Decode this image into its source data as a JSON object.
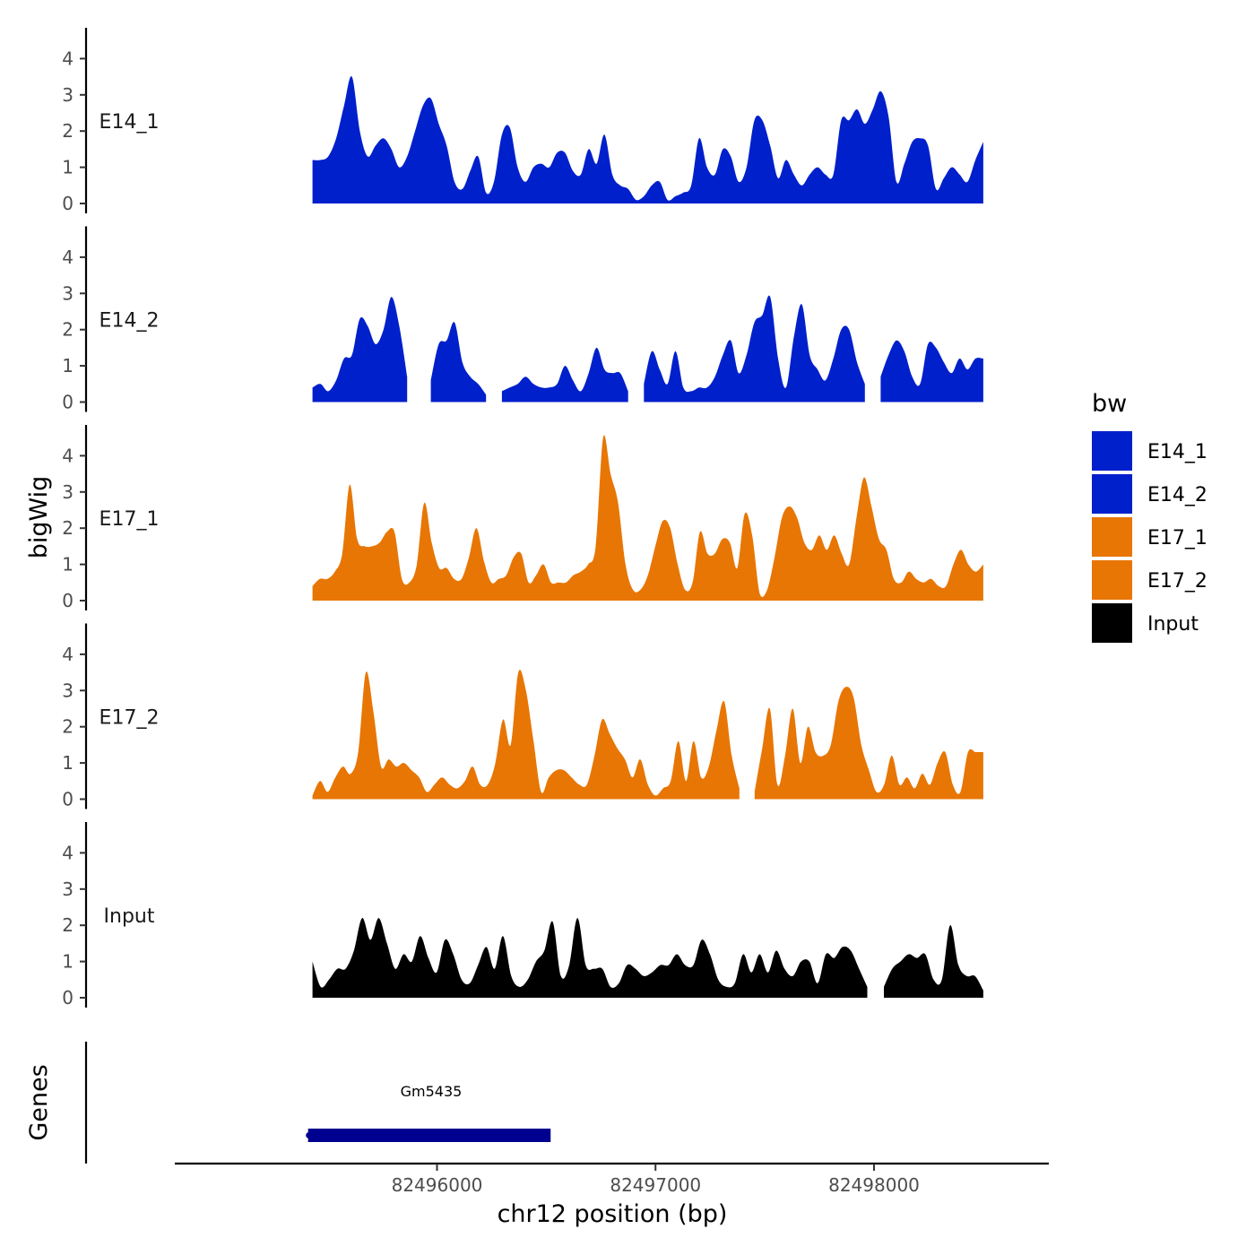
{
  "chart_data": {
    "type": "area",
    "x_axis": {
      "label": "chr12 position (bp)",
      "ticks": [
        82496000,
        82497000,
        82498000
      ],
      "range": [
        82494800,
        82498800
      ]
    },
    "y_axis": {
      "label": "bigWig",
      "ticks": [
        0,
        1,
        2,
        3,
        4
      ],
      "range": [
        0,
        4.8
      ]
    },
    "data_range": [
      82495430,
      82498500
    ],
    "legend": {
      "title": "bw",
      "position": "right",
      "entries": [
        {
          "name": "E14_1",
          "color": "#0020CC"
        },
        {
          "name": "E14_2",
          "color": "#0020CC"
        },
        {
          "name": "E17_1",
          "color": "#E87604"
        },
        {
          "name": "E17_2",
          "color": "#E87604"
        },
        {
          "name": "Input",
          "color": "#000000"
        }
      ]
    },
    "series": [
      {
        "name": "E14_1",
        "color": "#0020CC",
        "values": [
          1.2,
          1.2,
          1.3,
          1.8,
          2.7,
          3.5,
          2.0,
          1.3,
          1.6,
          1.8,
          1.5,
          1.0,
          1.3,
          2.0,
          2.7,
          2.9,
          2.2,
          1.6,
          0.6,
          0.4,
          0.9,
          1.3,
          0.3,
          0.6,
          1.9,
          2.1,
          1.0,
          0.6,
          1.0,
          1.1,
          1.0,
          1.4,
          1.4,
          0.9,
          0.8,
          1.5,
          1.1,
          1.9,
          0.8,
          0.5,
          0.4,
          0.1,
          0.2,
          0.5,
          0.6,
          0.1,
          0.2,
          0.3,
          0.5,
          1.8,
          1.0,
          0.8,
          1.5,
          1.3,
          0.6,
          1.0,
          2.3,
          2.3,
          1.6,
          0.7,
          1.2,
          0.8,
          0.5,
          0.8,
          1.0,
          0.8,
          0.8,
          2.3,
          2.3,
          2.6,
          2.2,
          2.6,
          3.1,
          2.4,
          0.6,
          1.1,
          1.7,
          1.8,
          1.6,
          0.4,
          0.7,
          1.0,
          0.8,
          0.6,
          1.2,
          1.7
        ]
      },
      {
        "name": "E14_2",
        "color": "#0020CC",
        "values": [
          0.4,
          0.5,
          0.3,
          0.6,
          1.2,
          1.3,
          2.3,
          2.1,
          1.6,
          2.0,
          2.9,
          2.1,
          0.7,
          null,
          null,
          0.6,
          1.6,
          1.7,
          2.2,
          1.1,
          0.7,
          0.5,
          0.2,
          null,
          0.3,
          0.4,
          0.5,
          0.7,
          0.5,
          0.4,
          0.4,
          0.5,
          1.0,
          0.6,
          0.3,
          0.8,
          1.5,
          0.9,
          0.8,
          0.8,
          0.3,
          null,
          0.5,
          1.4,
          0.9,
          0.5,
          1.4,
          0.4,
          0.3,
          0.4,
          0.4,
          0.7,
          1.3,
          1.7,
          0.8,
          1.3,
          2.2,
          2.4,
          2.9,
          1.2,
          0.4,
          1.8,
          2.7,
          1.3,
          0.9,
          0.6,
          1.2,
          2.0,
          2.0,
          1.1,
          0.5,
          null,
          0.7,
          1.3,
          1.7,
          1.4,
          0.7,
          0.5,
          1.6,
          1.5,
          1.1,
          0.8,
          1.2,
          0.9,
          1.2,
          1.2
        ]
      },
      {
        "name": "E17_1",
        "color": "#E87604",
        "values": [
          0.4,
          0.6,
          0.6,
          0.8,
          1.3,
          3.2,
          1.7,
          1.5,
          1.5,
          1.6,
          1.9,
          1.9,
          0.6,
          0.5,
          1.0,
          2.7,
          1.6,
          0.9,
          0.9,
          0.6,
          0.6,
          1.2,
          2.0,
          1.1,
          0.5,
          0.6,
          0.7,
          1.2,
          1.3,
          0.5,
          0.7,
          1.0,
          0.5,
          0.5,
          0.5,
          0.7,
          0.8,
          1.0,
          1.5,
          4.5,
          3.5,
          2.7,
          1.0,
          0.3,
          0.3,
          0.7,
          1.5,
          2.2,
          2.0,
          1.0,
          0.3,
          0.5,
          1.9,
          1.3,
          1.3,
          1.7,
          1.6,
          0.9,
          2.4,
          1.8,
          0.2,
          0.3,
          1.2,
          2.3,
          2.6,
          2.3,
          1.6,
          1.4,
          1.8,
          1.4,
          1.8,
          1.3,
          1.0,
          2.3,
          3.4,
          2.6,
          1.7,
          1.4,
          0.6,
          0.5,
          0.8,
          0.6,
          0.5,
          0.6,
          0.4,
          0.4,
          1.0,
          1.4,
          1.0,
          0.8,
          1.0
        ]
      },
      {
        "name": "E17_2",
        "color": "#E87604",
        "values": [
          0.1,
          0.5,
          0.2,
          0.6,
          0.9,
          0.7,
          1.3,
          3.5,
          2.4,
          0.9,
          1.1,
          0.9,
          1.0,
          0.8,
          0.6,
          0.2,
          0.4,
          0.6,
          0.4,
          0.3,
          0.5,
          0.9,
          0.4,
          0.4,
          1.0,
          2.2,
          1.5,
          3.5,
          3.0,
          1.6,
          0.2,
          0.6,
          0.8,
          0.8,
          0.6,
          0.4,
          0.4,
          1.2,
          2.2,
          1.8,
          1.4,
          1.1,
          0.6,
          1.1,
          0.4,
          0.1,
          0.3,
          0.5,
          1.6,
          0.5,
          1.6,
          0.6,
          0.9,
          1.9,
          2.7,
          1.2,
          0.3,
          null,
          0.2,
          1.4,
          2.5,
          0.4,
          1.2,
          2.5,
          1.0,
          2.0,
          1.3,
          1.2,
          1.5,
          2.7,
          3.1,
          2.8,
          1.5,
          0.8,
          0.2,
          0.4,
          1.2,
          0.4,
          0.6,
          0.3,
          0.7,
          0.4,
          1.0,
          1.3,
          0.4,
          0.2,
          1.3,
          1.3,
          1.3
        ]
      },
      {
        "name": "Input",
        "color": "#000000",
        "values": [
          1.0,
          0.3,
          0.5,
          0.8,
          0.8,
          1.3,
          2.2,
          1.6,
          2.2,
          1.5,
          0.8,
          1.2,
          1.0,
          1.7,
          1.1,
          0.7,
          1.6,
          1.2,
          0.5,
          0.4,
          0.9,
          1.4,
          0.8,
          1.7,
          0.6,
          0.3,
          0.5,
          1.0,
          1.3,
          2.1,
          0.6,
          0.9,
          2.2,
          0.9,
          0.8,
          0.8,
          0.3,
          0.4,
          0.9,
          0.8,
          0.6,
          0.7,
          0.9,
          0.9,
          1.2,
          0.9,
          0.9,
          1.6,
          1.2,
          0.5,
          0.3,
          0.4,
          1.2,
          0.7,
          1.2,
          0.7,
          1.3,
          0.8,
          0.6,
          1.0,
          1.0,
          0.4,
          1.2,
          1.1,
          1.4,
          1.3,
          0.8,
          0.3,
          null,
          0.3,
          0.8,
          1.0,
          1.2,
          1.1,
          1.2,
          0.5,
          0.5,
          2.0,
          0.9,
          0.6,
          0.6,
          0.2
        ]
      }
    ],
    "gene_track": {
      "label": "Genes",
      "genes": [
        {
          "name": "Gm5435",
          "start": 82495410,
          "end": 82496520,
          "color": "#000090"
        }
      ]
    }
  }
}
